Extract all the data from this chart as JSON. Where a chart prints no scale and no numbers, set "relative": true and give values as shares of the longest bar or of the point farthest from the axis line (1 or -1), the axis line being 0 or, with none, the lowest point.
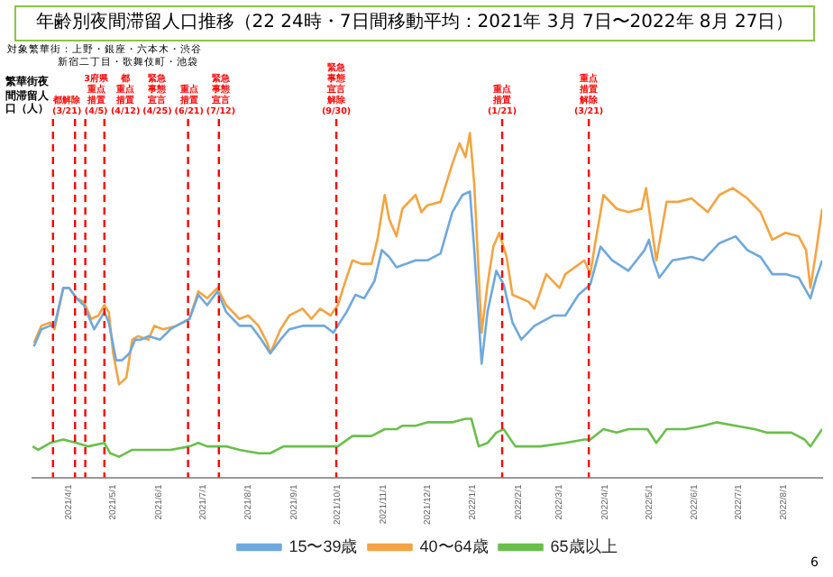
{
  "chart_data": {
    "type": "line",
    "title": "年齢別夜間滞留人口推移（22 24時・7日間移動平均：2021年 3月 7日〜2022年 8月 27日）",
    "ylabel": "繁華街夜間滞留人口（人）",
    "relative": true,
    "legend": "bottom",
    "marker": "none",
    "line_style": "solid",
    "xlim": [
      "2021-03-07",
      "2022-08-27"
    ],
    "xticks": [
      {
        "value": "2021-04-01",
        "label": "2021/4/1"
      },
      {
        "value": "2021-05-01",
        "label": "2021/5/1"
      },
      {
        "value": "2021-06-01",
        "label": "2021/6/1"
      },
      {
        "value": "2021-07-01",
        "label": "2021/7/1"
      },
      {
        "value": "2021-08-01",
        "label": "2021/8/1"
      },
      {
        "value": "2021-09-01",
        "label": "2021/9/1"
      },
      {
        "value": "2021-10-01",
        "label": "2021/10/1"
      },
      {
        "value": "2021-11-01",
        "label": "2021/11/1"
      },
      {
        "value": "2021-12-01",
        "label": "2021/12/1"
      },
      {
        "value": "2022-01-01",
        "label": "2022/1/1"
      },
      {
        "value": "2022-02-01",
        "label": "2022/2/1"
      },
      {
        "value": "2022-03-01",
        "label": "2022/3/1"
      },
      {
        "value": "2022-04-01",
        "label": "2022/4/1"
      },
      {
        "value": "2022-05-01",
        "label": "2022/5/1"
      },
      {
        "value": "2022-06-01",
        "label": "2022/6/1"
      },
      {
        "value": "2022-07-01",
        "label": "2022/7/1"
      },
      {
        "value": "2022-08-01",
        "label": "2022/8/1"
      }
    ],
    "annotations": [
      "対象繁華街：上野・銀座・六本木・渋谷",
      "新宿二丁目・歌舞伎町・池袋",
      "6"
    ],
    "ref_lines": [
      {
        "axis": "x",
        "value": "2021-03-21",
        "label": "都解除(3/21)",
        "color": "#ff0000",
        "line_style": "dashed"
      },
      {
        "axis": "x",
        "value": "2021-04-05",
        "label": "3府県重点措置(4/5)",
        "color": "#ff0000",
        "line_style": "dashed"
      },
      {
        "axis": "x",
        "value": "2021-04-12",
        "label": "都重点措置(4/12)",
        "color": "#ff0000",
        "line_style": "dashed"
      },
      {
        "axis": "x",
        "value": "2021-04-25",
        "label": "緊急事態宣言(4/25)",
        "color": "#ff0000",
        "line_style": "dashed"
      },
      {
        "axis": "x",
        "value": "2021-06-21",
        "label": "重点措置(6/21)",
        "color": "#ff0000",
        "line_style": "dashed"
      },
      {
        "axis": "x",
        "value": "2021-07-12",
        "label": "緊急事態宣言(7/12)",
        "color": "#ff0000",
        "line_style": "dashed"
      },
      {
        "axis": "x",
        "value": "2021-09-30",
        "label": "緊急事態宣言解除(9/30)",
        "color": "#ff0000",
        "line_style": "dashed"
      },
      {
        "axis": "x",
        "value": "2022-01-21",
        "label": "重点措置(1/21)",
        "color": "#ff0000",
        "line_style": "dashed"
      },
      {
        "axis": "x",
        "value": "2022-03-21",
        "label": "重点措置解除(3/21)",
        "color": "#ff0000",
        "line_style": "dashed"
      }
    ],
    "series": [
      {
        "name": "15〜39歳",
        "color": "#6fa8dc",
        "x": [
          "2021-03-08",
          "2021-03-13",
          "2021-03-19",
          "2021-03-22",
          "2021-03-28",
          "2021-04-01",
          "2021-04-06",
          "2021-04-11",
          "2021-04-18",
          "2021-04-25",
          "2021-04-28",
          "2021-05-03",
          "2021-05-07",
          "2021-05-12",
          "2021-05-16",
          "2021-05-20",
          "2021-05-25",
          "2021-06-02",
          "2021-06-09",
          "2021-06-13",
          "2021-06-22",
          "2021-06-28",
          "2021-07-04",
          "2021-07-11",
          "2021-07-17",
          "2021-07-26",
          "2021-08-03",
          "2021-08-10",
          "2021-08-16",
          "2021-08-23",
          "2021-08-29",
          "2021-09-07",
          "2021-09-13",
          "2021-09-22",
          "2021-09-28",
          "2021-10-01",
          "2021-10-07",
          "2021-10-13",
          "2021-10-19",
          "2021-10-26",
          "2021-10-31",
          "2021-11-05",
          "2021-11-10",
          "2021-11-23",
          "2021-12-01",
          "2021-12-10",
          "2021-12-18",
          "2021-12-25",
          "2021-12-30",
          "2022-01-02",
          "2022-01-07",
          "2022-01-11",
          "2022-01-17",
          "2022-01-22",
          "2022-01-28",
          "2022-02-03",
          "2022-02-12",
          "2022-02-25",
          "2022-03-05",
          "2022-03-14",
          "2022-03-22",
          "2022-03-29",
          "2022-04-06",
          "2022-04-17",
          "2022-04-28",
          "2022-05-01",
          "2022-05-04",
          "2022-05-08",
          "2022-05-17",
          "2022-05-30",
          "2022-06-07",
          "2022-06-18",
          "2022-06-29",
          "2022-07-07",
          "2022-07-16",
          "2022-07-24",
          "2022-08-02",
          "2022-08-11",
          "2022-08-19",
          "2022-08-23",
          "2022-08-27"
        ],
        "values": [
          0.38,
          0.43,
          0.44,
          0.44,
          0.55,
          0.55,
          0.52,
          0.5,
          0.43,
          0.48,
          0.45,
          0.34,
          0.34,
          0.36,
          0.4,
          0.4,
          0.41,
          0.4,
          0.43,
          0.44,
          0.46,
          0.53,
          0.5,
          0.54,
          0.48,
          0.44,
          0.44,
          0.4,
          0.36,
          0.4,
          0.43,
          0.44,
          0.44,
          0.44,
          0.42,
          0.44,
          0.48,
          0.53,
          0.52,
          0.57,
          0.66,
          0.64,
          0.61,
          0.63,
          0.63,
          0.65,
          0.77,
          0.82,
          0.83,
          0.66,
          0.33,
          0.48,
          0.6,
          0.56,
          0.45,
          0.4,
          0.44,
          0.47,
          0.47,
          0.53,
          0.56,
          0.67,
          0.63,
          0.6,
          0.66,
          0.69,
          0.63,
          0.58,
          0.63,
          0.64,
          0.63,
          0.68,
          0.7,
          0.66,
          0.64,
          0.59,
          0.59,
          0.58,
          0.52,
          0.58,
          0.63
        ]
      },
      {
        "name": "40〜64歳",
        "color": "#f4a442",
        "x": [
          "2021-03-08",
          "2021-03-13",
          "2021-03-19",
          "2021-03-22",
          "2021-03-28",
          "2021-04-01",
          "2021-04-06",
          "2021-04-11",
          "2021-04-16",
          "2021-04-21",
          "2021-04-25",
          "2021-04-28",
          "2021-05-01",
          "2021-05-05",
          "2021-05-10",
          "2021-05-14",
          "2021-05-18",
          "2021-05-25",
          "2021-05-29",
          "2021-06-04",
          "2021-06-13",
          "2021-06-22",
          "2021-06-28",
          "2021-07-04",
          "2021-07-11",
          "2021-07-17",
          "2021-07-26",
          "2021-08-01",
          "2021-08-08",
          "2021-08-14",
          "2021-08-16",
          "2021-08-23",
          "2021-08-29",
          "2021-09-07",
          "2021-09-13",
          "2021-09-19",
          "2021-09-26",
          "2021-10-01",
          "2021-10-07",
          "2021-10-11",
          "2021-10-17",
          "2021-10-24",
          "2021-10-28",
          "2021-11-02",
          "2021-11-05",
          "2021-11-10",
          "2021-11-14",
          "2021-11-23",
          "2021-11-27",
          "2021-12-01",
          "2021-12-10",
          "2021-12-18",
          "2021-12-23",
          "2021-12-27",
          "2021-12-30",
          "2022-01-02",
          "2022-01-07",
          "2022-01-11",
          "2022-01-15",
          "2022-01-19",
          "2022-01-24",
          "2022-01-28",
          "2022-02-08",
          "2022-02-12",
          "2022-02-20",
          "2022-03-01",
          "2022-03-05",
          "2022-03-18",
          "2022-03-22",
          "2022-03-25",
          "2022-03-31",
          "2022-04-09",
          "2022-04-17",
          "2022-04-26",
          "2022-04-29",
          "2022-05-02",
          "2022-05-06",
          "2022-05-13",
          "2022-05-21",
          "2022-05-30",
          "2022-06-10",
          "2022-06-18",
          "2022-06-27",
          "2022-07-07",
          "2022-07-16",
          "2022-07-24",
          "2022-08-02",
          "2022-08-11",
          "2022-08-16",
          "2022-08-19",
          "2022-08-23",
          "2022-08-27"
        ],
        "values": [
          0.39,
          0.44,
          0.45,
          0.43,
          0.55,
          0.55,
          0.52,
          0.51,
          0.46,
          0.47,
          0.5,
          0.48,
          0.36,
          0.27,
          0.29,
          0.4,
          0.41,
          0.4,
          0.44,
          0.43,
          0.44,
          0.46,
          0.54,
          0.52,
          0.55,
          0.5,
          0.46,
          0.47,
          0.44,
          0.39,
          0.36,
          0.43,
          0.47,
          0.49,
          0.46,
          0.49,
          0.47,
          0.5,
          0.58,
          0.63,
          0.62,
          0.62,
          0.69,
          0.82,
          0.75,
          0.7,
          0.78,
          0.82,
          0.77,
          0.79,
          0.8,
          0.91,
          0.97,
          0.93,
          1.0,
          0.85,
          0.42,
          0.56,
          0.67,
          0.71,
          0.64,
          0.53,
          0.51,
          0.49,
          0.59,
          0.55,
          0.59,
          0.63,
          0.59,
          0.67,
          0.82,
          0.78,
          0.77,
          0.78,
          0.84,
          0.75,
          0.63,
          0.8,
          0.8,
          0.81,
          0.77,
          0.82,
          0.84,
          0.81,
          0.77,
          0.69,
          0.71,
          0.7,
          0.66,
          0.55,
          0.66,
          0.78
        ]
      },
      {
        "name": "65歳以上",
        "color": "#6abf4b",
        "x": [
          "2021-03-07",
          "2021-03-11",
          "2021-03-19",
          "2021-03-28",
          "2021-04-06",
          "2021-04-14",
          "2021-04-25",
          "2021-04-29",
          "2021-05-05",
          "2021-05-14",
          "2021-05-27",
          "2021-06-09",
          "2021-06-22",
          "2021-06-28",
          "2021-07-04",
          "2021-07-11",
          "2021-07-17",
          "2021-07-26",
          "2021-08-08",
          "2021-08-16",
          "2021-08-25",
          "2021-09-07",
          "2021-09-19",
          "2021-10-01",
          "2021-10-11",
          "2021-10-24",
          "2021-11-02",
          "2021-11-10",
          "2021-11-14",
          "2021-11-23",
          "2021-12-01",
          "2021-12-10",
          "2021-12-18",
          "2021-12-27",
          "2021-12-31",
          "2022-01-05",
          "2022-01-11",
          "2022-01-17",
          "2022-01-22",
          "2022-01-30",
          "2022-02-08",
          "2022-02-16",
          "2022-03-05",
          "2022-03-18",
          "2022-03-22",
          "2022-03-31",
          "2022-04-09",
          "2022-04-17",
          "2022-04-26",
          "2022-04-30",
          "2022-05-06",
          "2022-05-13",
          "2022-05-26",
          "2022-06-07",
          "2022-06-16",
          "2022-06-29",
          "2022-07-12",
          "2022-07-20",
          "2022-07-29",
          "2022-08-06",
          "2022-08-15",
          "2022-08-19",
          "2022-08-27"
        ],
        "values": [
          0.09,
          0.08,
          0.1,
          0.11,
          0.1,
          0.09,
          0.1,
          0.07,
          0.06,
          0.08,
          0.08,
          0.08,
          0.09,
          0.1,
          0.09,
          0.09,
          0.09,
          0.08,
          0.07,
          0.07,
          0.09,
          0.09,
          0.09,
          0.09,
          0.12,
          0.12,
          0.14,
          0.14,
          0.15,
          0.15,
          0.16,
          0.16,
          0.16,
          0.17,
          0.17,
          0.09,
          0.1,
          0.13,
          0.14,
          0.09,
          0.09,
          0.09,
          0.1,
          0.11,
          0.11,
          0.14,
          0.13,
          0.14,
          0.14,
          0.14,
          0.1,
          0.14,
          0.14,
          0.15,
          0.16,
          0.15,
          0.14,
          0.13,
          0.13,
          0.13,
          0.11,
          0.09,
          0.14
        ]
      }
    ]
  }
}
